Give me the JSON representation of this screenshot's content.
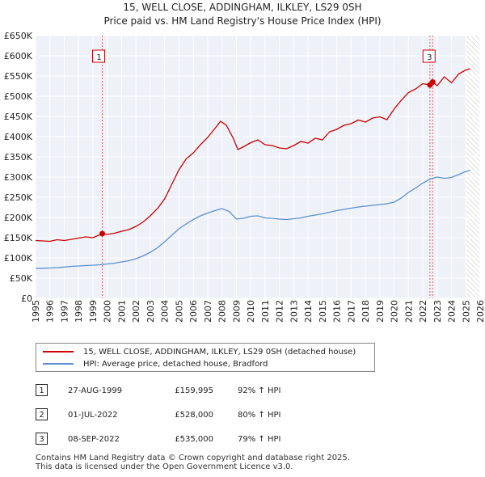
{
  "chart_data": {
    "type": "line",
    "title": "15, WELL CLOSE, ADDINGHAM, ILKLEY, LS29 0SH",
    "subtitle": "Price paid vs. HM Land Registry's House Price Index (HPI)",
    "xlabel": "",
    "ylabel": "",
    "xlim": [
      1995,
      2026
    ],
    "ylim": [
      0,
      650000
    ],
    "grid": true,
    "x_ticks": [
      "1995",
      "1996",
      "1997",
      "1998",
      "1999",
      "2000",
      "2001",
      "2002",
      "2003",
      "2004",
      "2005",
      "2006",
      "2007",
      "2008",
      "2009",
      "2010",
      "2011",
      "2012",
      "2013",
      "2014",
      "2015",
      "2016",
      "2017",
      "2018",
      "2019",
      "2020",
      "2021",
      "2022",
      "2023",
      "2024",
      "2025",
      "2026"
    ],
    "y_ticks": [
      {
        "value": 0,
        "label": "£0"
      },
      {
        "value": 50000,
        "label": "£50K"
      },
      {
        "value": 100000,
        "label": "£100K"
      },
      {
        "value": 150000,
        "label": "£150K"
      },
      {
        "value": 200000,
        "label": "£200K"
      },
      {
        "value": 250000,
        "label": "£250K"
      },
      {
        "value": 300000,
        "label": "£300K"
      },
      {
        "value": 350000,
        "label": "£350K"
      },
      {
        "value": 400000,
        "label": "£400K"
      },
      {
        "value": 450000,
        "label": "£450K"
      },
      {
        "value": 500000,
        "label": "£500K"
      },
      {
        "value": 550000,
        "label": "£550K"
      },
      {
        "value": 600000,
        "label": "£600K"
      },
      {
        "value": 650000,
        "label": "£650K"
      }
    ],
    "series": [
      {
        "name": "15, WELL CLOSE, ADDINGHAM, ILKLEY, LS29 0SH (detached house)",
        "color": "#cc0000",
        "points": [
          [
            1995.0,
            143000
          ],
          [
            1995.5,
            142000
          ],
          [
            1996.0,
            141000
          ],
          [
            1996.5,
            145000
          ],
          [
            1997.0,
            143000
          ],
          [
            1997.5,
            146000
          ],
          [
            1998.0,
            149000
          ],
          [
            1998.5,
            152000
          ],
          [
            1999.0,
            150000
          ],
          [
            1999.65,
            159995
          ],
          [
            2000.0,
            158000
          ],
          [
            2000.5,
            161000
          ],
          [
            2001.0,
            166000
          ],
          [
            2001.5,
            170000
          ],
          [
            2002.0,
            178000
          ],
          [
            2002.5,
            189000
          ],
          [
            2003.0,
            204000
          ],
          [
            2003.5,
            222000
          ],
          [
            2004.0,
            246000
          ],
          [
            2004.5,
            282000
          ],
          [
            2005.0,
            318000
          ],
          [
            2005.5,
            345000
          ],
          [
            2006.0,
            360000
          ],
          [
            2006.5,
            380000
          ],
          [
            2007.0,
            398000
          ],
          [
            2007.5,
            420000
          ],
          [
            2007.9,
            438000
          ],
          [
            2008.3,
            428000
          ],
          [
            2008.8,
            395000
          ],
          [
            2009.1,
            368000
          ],
          [
            2009.5,
            375000
          ],
          [
            2010.0,
            385000
          ],
          [
            2010.5,
            392000
          ],
          [
            2011.0,
            380000
          ],
          [
            2011.5,
            378000
          ],
          [
            2012.0,
            372000
          ],
          [
            2012.5,
            370000
          ],
          [
            2013.0,
            378000
          ],
          [
            2013.5,
            388000
          ],
          [
            2014.0,
            384000
          ],
          [
            2014.5,
            396000
          ],
          [
            2015.0,
            392000
          ],
          [
            2015.5,
            412000
          ],
          [
            2016.0,
            418000
          ],
          [
            2016.5,
            428000
          ],
          [
            2017.0,
            432000
          ],
          [
            2017.5,
            441000
          ],
          [
            2018.0,
            436000
          ],
          [
            2018.5,
            446000
          ],
          [
            2019.0,
            449000
          ],
          [
            2019.5,
            442000
          ],
          [
            2020.0,
            468000
          ],
          [
            2020.5,
            490000
          ],
          [
            2021.0,
            509000
          ],
          [
            2021.5,
            518000
          ],
          [
            2022.0,
            531000
          ],
          [
            2022.5,
            528000
          ],
          [
            2022.69,
            535000
          ],
          [
            2023.0,
            526000
          ],
          [
            2023.5,
            548000
          ],
          [
            2024.0,
            533000
          ],
          [
            2024.5,
            555000
          ],
          [
            2025.0,
            565000
          ],
          [
            2025.3,
            568000
          ]
        ]
      },
      {
        "name": "HPI: Average price, detached house, Bradford",
        "color": "#5b8fcf",
        "points": [
          [
            1995.0,
            74000
          ],
          [
            1995.5,
            74500
          ],
          [
            1996.0,
            75000
          ],
          [
            1996.5,
            76000
          ],
          [
            1997.0,
            77500
          ],
          [
            1997.5,
            79000
          ],
          [
            1998.0,
            80000
          ],
          [
            1998.5,
            81000
          ],
          [
            1999.0,
            82000
          ],
          [
            1999.5,
            83000
          ],
          [
            2000.0,
            85000
          ],
          [
            2000.5,
            87000
          ],
          [
            2001.0,
            90000
          ],
          [
            2001.5,
            93000
          ],
          [
            2002.0,
            98000
          ],
          [
            2002.5,
            105000
          ],
          [
            2003.0,
            114000
          ],
          [
            2003.5,
            125000
          ],
          [
            2004.0,
            140000
          ],
          [
            2004.5,
            156000
          ],
          [
            2005.0,
            172000
          ],
          [
            2005.5,
            184000
          ],
          [
            2006.0,
            195000
          ],
          [
            2006.5,
            204000
          ],
          [
            2007.0,
            211000
          ],
          [
            2007.5,
            217000
          ],
          [
            2008.0,
            222000
          ],
          [
            2008.5,
            215000
          ],
          [
            2009.0,
            196000
          ],
          [
            2009.5,
            198000
          ],
          [
            2010.0,
            203000
          ],
          [
            2010.5,
            204000
          ],
          [
            2011.0,
            199000
          ],
          [
            2011.5,
            198000
          ],
          [
            2012.0,
            196000
          ],
          [
            2012.5,
            195000
          ],
          [
            2013.0,
            197000
          ],
          [
            2013.5,
            199000
          ],
          [
            2014.0,
            203000
          ],
          [
            2014.5,
            206000
          ],
          [
            2015.0,
            209000
          ],
          [
            2015.5,
            213000
          ],
          [
            2016.0,
            217000
          ],
          [
            2016.5,
            220000
          ],
          [
            2017.0,
            223000
          ],
          [
            2017.5,
            226000
          ],
          [
            2018.0,
            228000
          ],
          [
            2018.5,
            230000
          ],
          [
            2019.0,
            232000
          ],
          [
            2019.5,
            234000
          ],
          [
            2020.0,
            238000
          ],
          [
            2020.5,
            248000
          ],
          [
            2021.0,
            262000
          ],
          [
            2021.5,
            273000
          ],
          [
            2022.0,
            285000
          ],
          [
            2022.5,
            295000
          ],
          [
            2023.0,
            300000
          ],
          [
            2023.5,
            297000
          ],
          [
            2024.0,
            299000
          ],
          [
            2024.5,
            306000
          ],
          [
            2025.0,
            314000
          ],
          [
            2025.3,
            316000
          ]
        ]
      }
    ],
    "markers": [
      {
        "label": "1",
        "x": 1999.65,
        "y": 159995
      },
      {
        "label": "2",
        "x": 2022.5,
        "y": 528000
      },
      {
        "label": "3",
        "x": 2022.69,
        "y": 535000
      }
    ],
    "vlines": [
      1999.65,
      2022.5,
      2022.69
    ],
    "box_labels": [
      {
        "label": "1",
        "x": 1999.65,
        "y": 590000
      },
      {
        "label": "3",
        "x": 2022.69,
        "y": 590000
      }
    ],
    "shaded_future": {
      "from": 2025.0,
      "to": 2026.0
    }
  },
  "legend": {
    "items": [
      {
        "label": "15, WELL CLOSE, ADDINGHAM, ILKLEY, LS29 0SH (detached house)",
        "color": "#cc0000"
      },
      {
        "label": "HPI: Average price, detached house, Bradford",
        "color": "#5b8fcf"
      }
    ]
  },
  "transactions": [
    {
      "num": "1",
      "date": "27-AUG-1999",
      "price": "£159,995",
      "hpi": "92% ↑ HPI"
    },
    {
      "num": "2",
      "date": "01-JUL-2022",
      "price": "£528,000",
      "hpi": "80% ↑ HPI"
    },
    {
      "num": "3",
      "date": "08-SEP-2022",
      "price": "£535,000",
      "hpi": "79% ↑ HPI"
    }
  ],
  "footer": {
    "line1": "Contains HM Land Registry data © Crown copyright and database right 2025.",
    "line2": "This data is licensed under the Open Government Licence v3.0."
  }
}
